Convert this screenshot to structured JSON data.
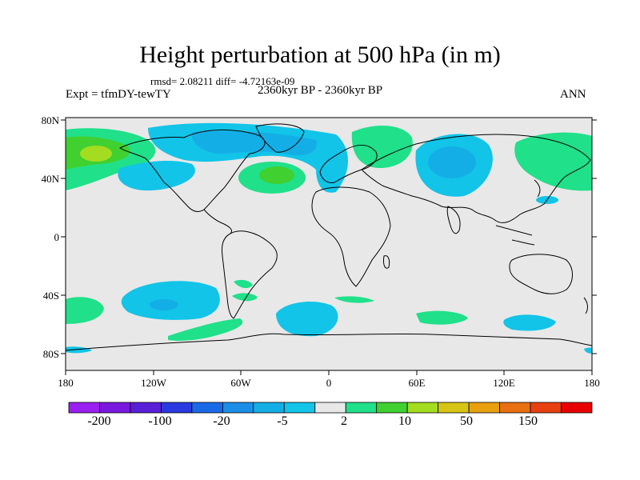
{
  "title": "Height perturbation at 500 hPa (in m)",
  "stats": "rmsd= 2.08211 diff= -4.72163e-09",
  "experiment": "Expt = tfmDY-tewTY",
  "period": "2360kyr BP - 2360kyr BP",
  "season": "ANN",
  "colors": {
    "background": "#e8e8e8",
    "coastline": "#000000",
    "palette": [
      "#9a1ff0",
      "#7a18e0",
      "#5a20d8",
      "#2a3ae0",
      "#1a6ae8",
      "#1c8ee6",
      "#14aee6",
      "#12c4e8",
      "#e8e8e8",
      "#20e08a",
      "#40d030",
      "#a4dc20",
      "#d8c414",
      "#e8a010",
      "#e87010",
      "#e84010",
      "#e80000"
    ]
  },
  "axes": {
    "lat_labels": [
      "80N",
      "40N",
      "0",
      "40S",
      "80S"
    ],
    "lon_labels": [
      "180",
      "120W",
      "60W",
      "0",
      "60E",
      "120E",
      "180"
    ]
  },
  "colorbar": {
    "labels": [
      "-200",
      "-100",
      "-20",
      "-5",
      "2",
      "10",
      "50",
      "150"
    ]
  },
  "map_regions": [
    {
      "id": "npac-green",
      "level": "positive",
      "lon": -160,
      "lat": 58
    },
    {
      "id": "npac-center",
      "level": "strong-positive",
      "lon": -170,
      "lat": 58
    },
    {
      "id": "arctic-blue",
      "level": "negative",
      "lon": -60,
      "lat": 65
    },
    {
      "id": "atl-green",
      "level": "positive",
      "lon": -35,
      "lat": 40
    },
    {
      "id": "euro-green",
      "level": "positive",
      "lon": 30,
      "lat": 60
    },
    {
      "id": "asia-blue",
      "level": "negative",
      "lon": 95,
      "lat": 50
    },
    {
      "id": "pacific-green",
      "level": "positive",
      "lon": 150,
      "lat": 55
    },
    {
      "id": "spac-blue",
      "level": "negative",
      "lon": -120,
      "lat": -48
    },
    {
      "id": "satl-blue",
      "level": "negative",
      "lon": -5,
      "lat": -55
    },
    {
      "id": "sio-blue",
      "level": "negative",
      "lon": 120,
      "lat": -60
    }
  ]
}
